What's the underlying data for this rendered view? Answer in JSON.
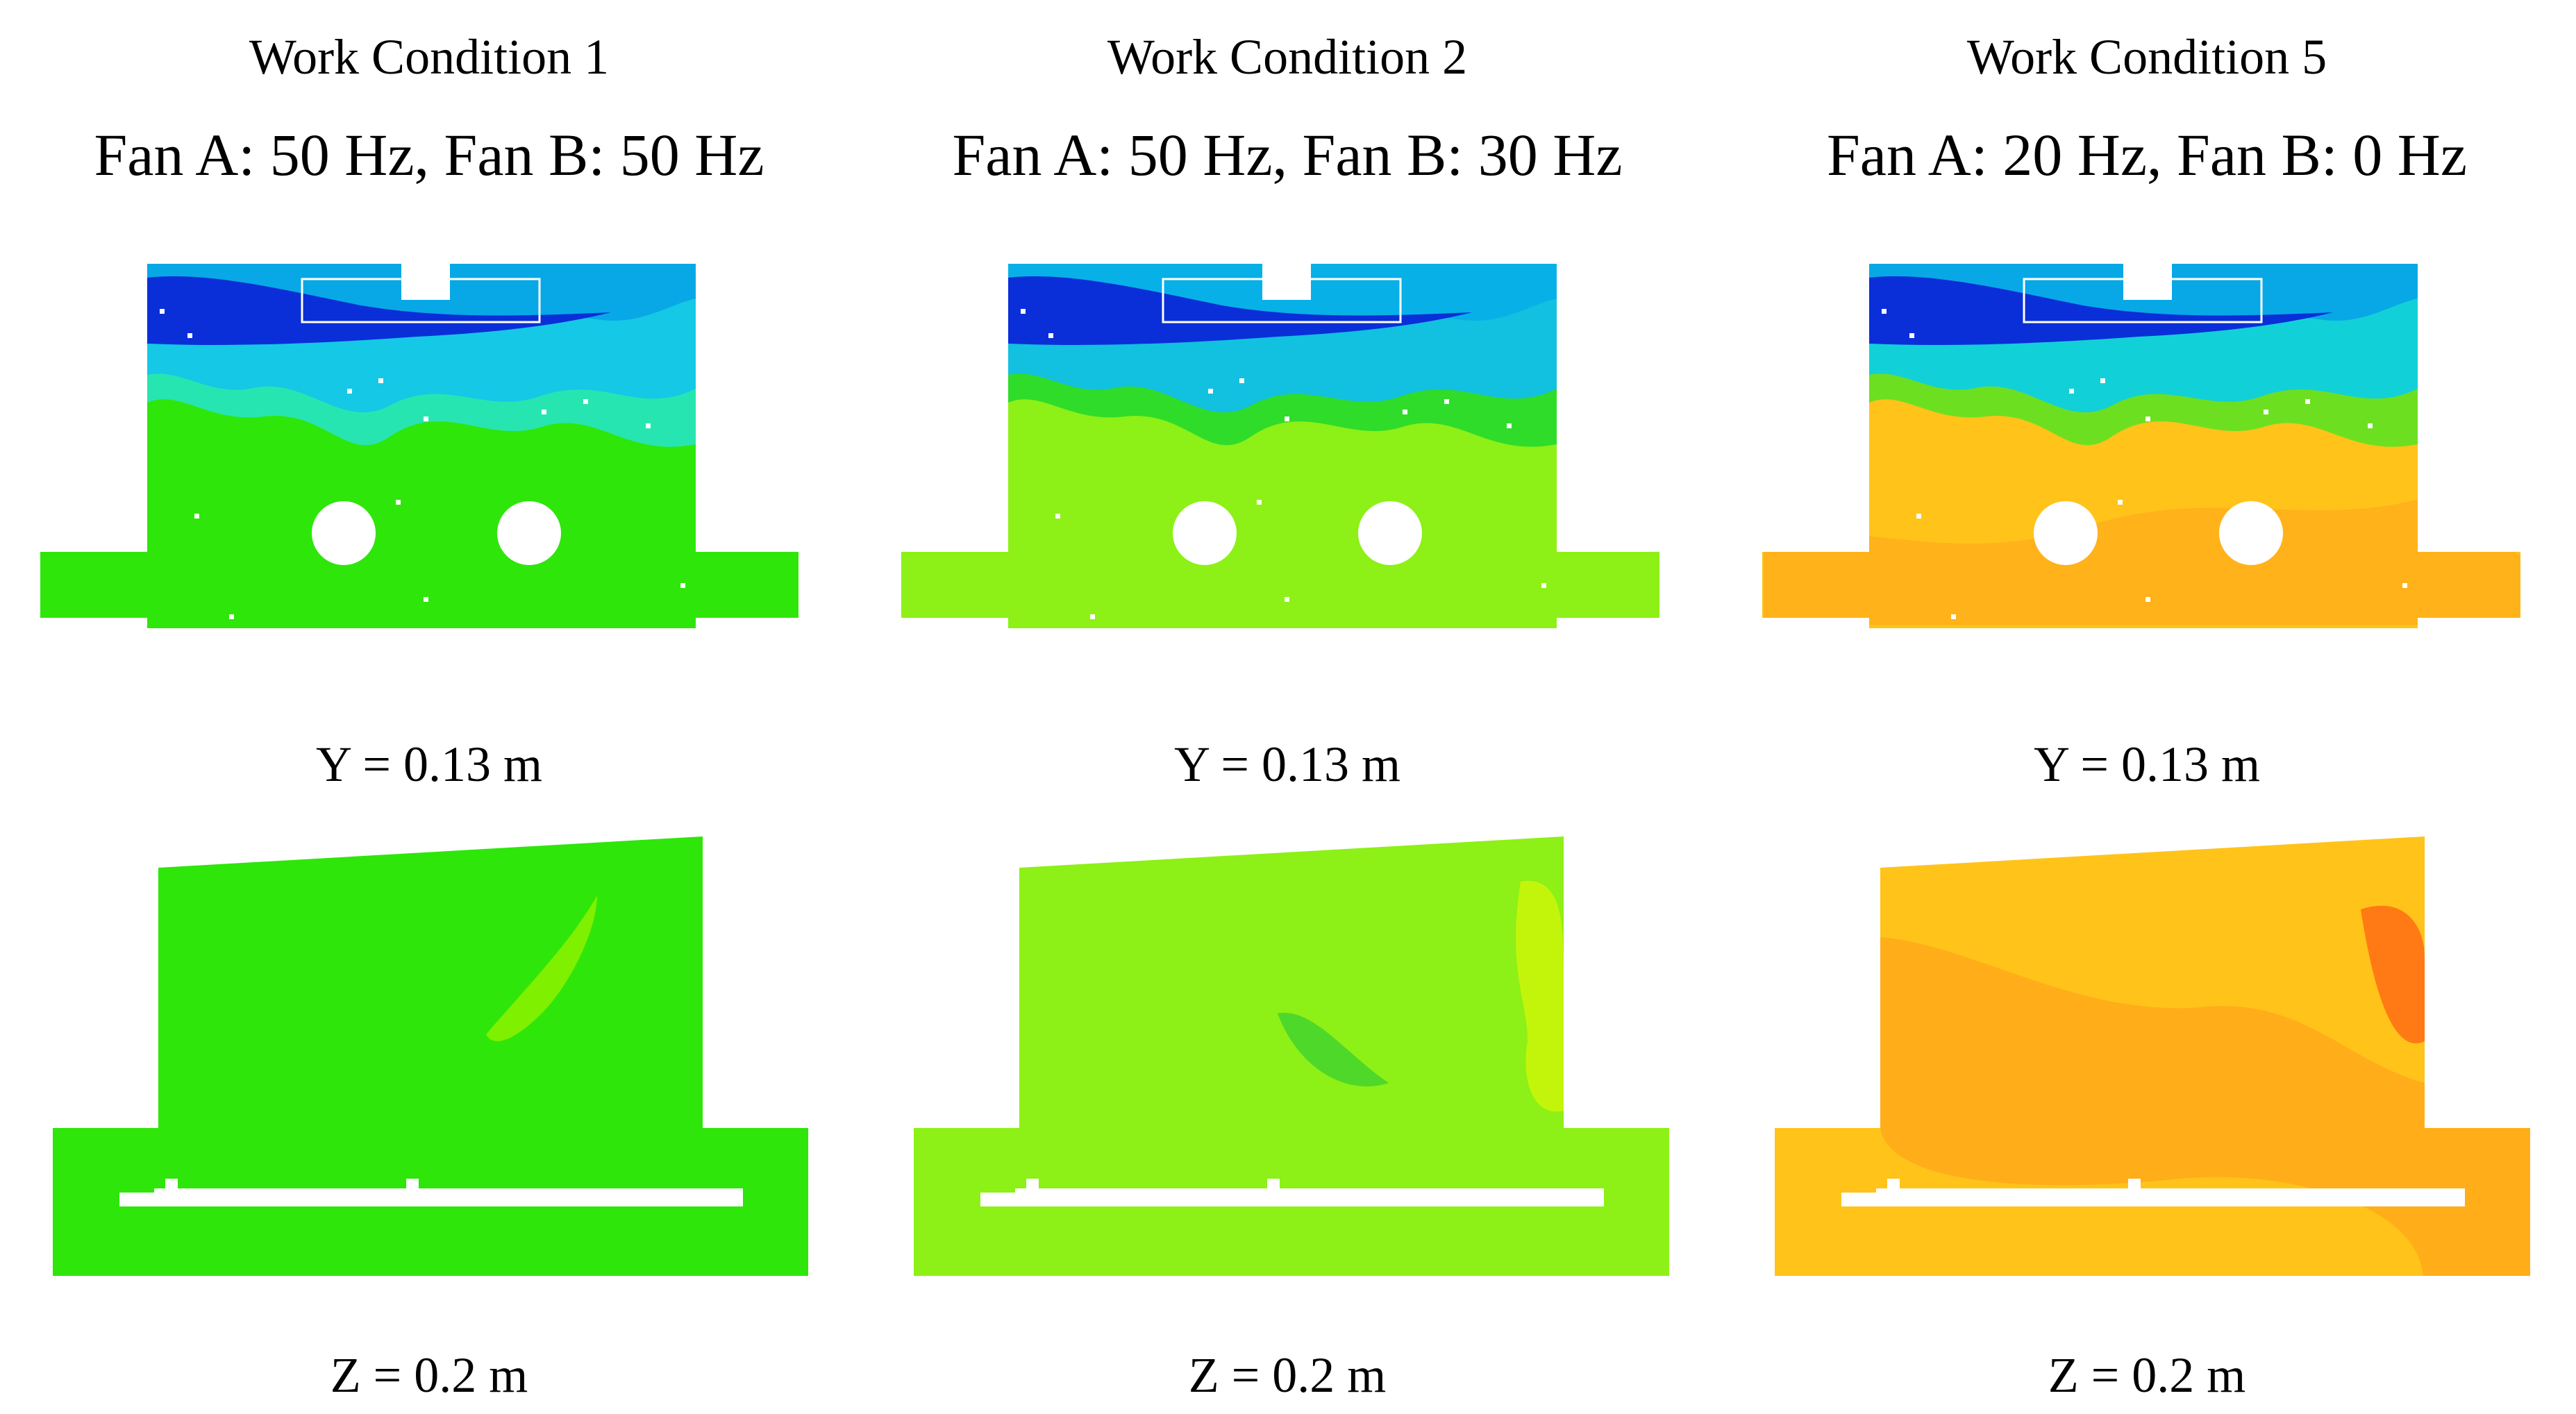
{
  "panels": [
    {
      "title": "Work Condition 1",
      "fans": "Fan A: 50 Hz, Fan B: 50 Hz",
      "top_label": "Y = 0.13 m",
      "bottom_label": "Z = 0.2 m",
      "field_color": "#2ee60a",
      "secondary_color": "#7ef000",
      "upper_colors": [
        "#08a8e6",
        "#0a2fd8",
        "#15c8e6",
        "#27e5b0"
      ]
    },
    {
      "title": "Work Condition 2",
      "fans": "Fan A: 50 Hz, Fan B: 30 Hz",
      "top_label": "Y = 0.13 m",
      "bottom_label": "Z = 0.2 m",
      "field_color": "#8df016",
      "secondary_color": "#c3f50a",
      "upper_colors": [
        "#08b0e8",
        "#0a2fd8",
        "#12c0e0",
        "#2fdc2a"
      ]
    },
    {
      "title": "Work Condition 5",
      "fans": "Fan A: 20 Hz, Fan B: 0 Hz",
      "top_label": "Y = 0.13 m",
      "bottom_label": "Z = 0.2 m",
      "field_color": "#ffc31a",
      "secondary_color": "#ffa41a",
      "upper_colors": [
        "#08a8e6",
        "#0a2fd8",
        "#12d0d8",
        "#6ce020"
      ]
    }
  ]
}
